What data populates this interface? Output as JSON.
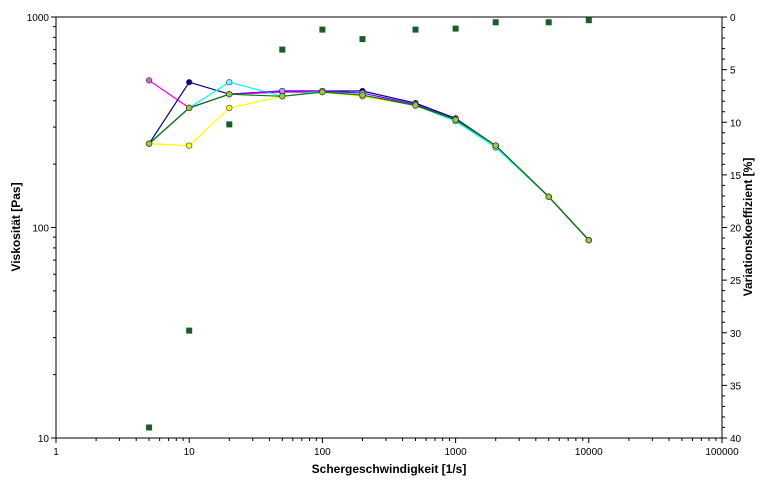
{
  "chart_data": {
    "type": "line",
    "title": "",
    "xlabel": "Schergeschwindigkeit [1/s]",
    "ylabel": "Viskosität [Pas]",
    "y2label": "Variationskoeffizient [%]",
    "xscale": "log",
    "yscale": "log",
    "xlim": [
      1,
      100000
    ],
    "ylim": [
      10,
      1000
    ],
    "y2lim": [
      40,
      0
    ],
    "y2_inverted": true,
    "grid": false,
    "legend": "none",
    "x_ticks": [
      "1",
      "10",
      "100",
      "1000",
      "10000",
      "100000"
    ],
    "y_ticks": [
      "10",
      "100",
      "1000"
    ],
    "y2_ticks": [
      "0",
      "5",
      "10",
      "15",
      "20",
      "25",
      "30",
      "35",
      "40"
    ],
    "x": [
      5,
      10,
      20,
      50,
      100,
      200,
      500,
      1000,
      2000,
      5000,
      10000
    ],
    "series": [
      {
        "color": "#ff00ff",
        "marker_fill": "#cc66cc",
        "values": [
          500,
          370,
          430,
          440,
          440,
          425,
          385,
          325,
          245,
          140,
          87
        ]
      },
      {
        "color": "#000080",
        "marker_fill": "#000080",
        "values": [
          250,
          490,
          430,
          445,
          445,
          445,
          390,
          330,
          245,
          140,
          87
        ]
      },
      {
        "color": "#00ffff",
        "marker_fill": "#66ffff",
        "values": [
          250,
          370,
          490,
          420,
          445,
          425,
          380,
          320,
          240,
          140,
          87
        ]
      },
      {
        "color": "#ffff00",
        "marker_fill": "#ffff00",
        "values": [
          250,
          245,
          370,
          420,
          440,
          420,
          380,
          325,
          245,
          140,
          87
        ]
      },
      {
        "color": "#8000ff",
        "marker_fill": "#a0a0ff",
        "values": [
          250,
          370,
          430,
          445,
          445,
          435,
          385,
          325,
          245,
          140,
          87
        ]
      },
      {
        "color": "#008000",
        "marker_fill": "#99cc33",
        "values": [
          250,
          370,
          430,
          420,
          440,
          425,
          380,
          325,
          245,
          140,
          87
        ]
      }
    ],
    "cv_series": {
      "axis": "y2",
      "color": "#1a5c2e",
      "marker": "square",
      "x": [
        5,
        10,
        20,
        50,
        100,
        200,
        500,
        1000,
        2000,
        5000,
        10000
      ],
      "values": [
        39,
        29.8,
        10.2,
        3.1,
        1.2,
        2.1,
        1.2,
        1.1,
        0.5,
        0.5,
        0.3
      ]
    }
  }
}
